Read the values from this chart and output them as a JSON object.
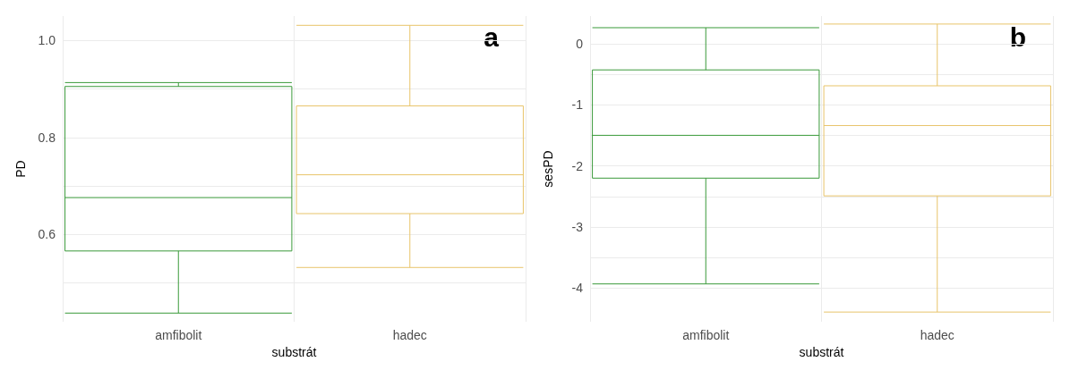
{
  "chart_data": [
    {
      "type": "box",
      "xlabel": "substrát",
      "ylabel": "PD",
      "categories": [
        "amfibolit",
        "hadec"
      ],
      "colors": [
        "#3a9a3a",
        "#e8c46a"
      ],
      "boxes": [
        {
          "low": 0.438,
          "q1": 0.566,
          "median": 0.676,
          "q3": 0.905,
          "high": 0.913
        },
        {
          "low": 0.532,
          "q1": 0.643,
          "median": 0.723,
          "q3": 0.865,
          "high": 1.031
        }
      ],
      "ylim": [
        0.42,
        1.05
      ],
      "yticks": [
        {
          "value": 0.5,
          "label": null
        },
        0.6,
        {
          "value": 0.7,
          "label": null
        },
        0.8,
        {
          "value": 0.9,
          "label": null
        },
        {
          "value": 1.0,
          "label": "1.0"
        }
      ],
      "grid": true,
      "annotations": [
        "a"
      ]
    },
    {
      "type": "box",
      "xlabel": "substrát",
      "ylabel": "sesPD",
      "categories": [
        "amfibolit",
        "hadec"
      ],
      "colors": [
        "#3a9a3a",
        "#e8c46a"
      ],
      "boxes": [
        {
          "low": -3.93,
          "q1": -2.2,
          "median": -1.5,
          "q3": -0.43,
          "high": 0.26
        },
        {
          "low": -4.39,
          "q1": -2.49,
          "median": -1.34,
          "q3": -0.69,
          "high": 0.32
        }
      ],
      "ylim": [
        -4.55,
        0.45
      ],
      "yticks": [
        -4,
        {
          "value": -3.5,
          "label": null
        },
        -3,
        {
          "value": -2.5,
          "label": null
        },
        -2,
        {
          "value": -1.5,
          "label": null
        },
        -1,
        {
          "value": -0.5,
          "label": null
        },
        0
      ],
      "grid": true,
      "annotations": [
        "b"
      ]
    }
  ]
}
